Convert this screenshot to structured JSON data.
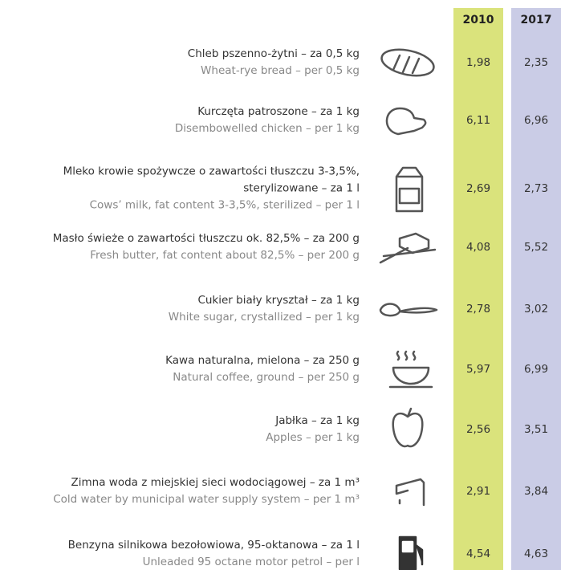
{
  "header": {
    "columns": [
      "2010",
      "2017"
    ]
  },
  "rows": [
    {
      "pl": [
        "Chleb pszenno-żytni – za 0,5 kg"
      ],
      "en": "Wheat-rye bread – per 0,5 kg",
      "values": [
        "1,98",
        "2,35"
      ]
    },
    {
      "pl": [
        "Kurczęta patroszone – za 1 kg"
      ],
      "en": "Disembowelled chicken – per 1 kg",
      "values": [
        "6,11",
        "6,96"
      ]
    },
    {
      "pl": [
        "Mleko krowie spożywcze o zawartości tłuszczu 3-3,5%,",
        "sterylizowane – za 1 l"
      ],
      "en": "Cows’ milk, fat content 3-3,5%, sterilized – per 1 l",
      "values": [
        "2,69",
        "2,73"
      ]
    },
    {
      "pl": [
        "Masło świeże o zawartości tłuszczu ok. 82,5% – za 200 g"
      ],
      "en": "Fresh butter, fat content about 82,5% – per 200 g",
      "values": [
        "4,08",
        "5,52"
      ]
    },
    {
      "pl": [
        "Cukier biały kryształ – za 1 kg"
      ],
      "en": "White sugar, crystallized – per 1 kg",
      "values": [
        "2,78",
        "3,02"
      ]
    },
    {
      "pl": [
        "Kawa naturalna, mielona – za 250 g"
      ],
      "en": "Natural coffee, ground – per 250 g",
      "values": [
        "5,97",
        "6,99"
      ]
    },
    {
      "pl": [
        "Jabłka – za 1 kg"
      ],
      "en": "Apples – per 1 kg",
      "values": [
        "2,56",
        "3,51"
      ]
    },
    {
      "pl": [
        "Zimna woda z miejskiej sieci wodociągowej – za 1 m³"
      ],
      "en": "Cold water by municipal water supply system – per 1 m³",
      "values": [
        "2,91",
        "3,84"
      ]
    },
    {
      "pl": [
        "Benzyna silnikowa bezołowiowa, 95-oktanowa – za 1 l"
      ],
      "en": "Unleaded 95 octane motor petrol – per l",
      "values": [
        "4,54",
        "4,63"
      ]
    }
  ]
}
